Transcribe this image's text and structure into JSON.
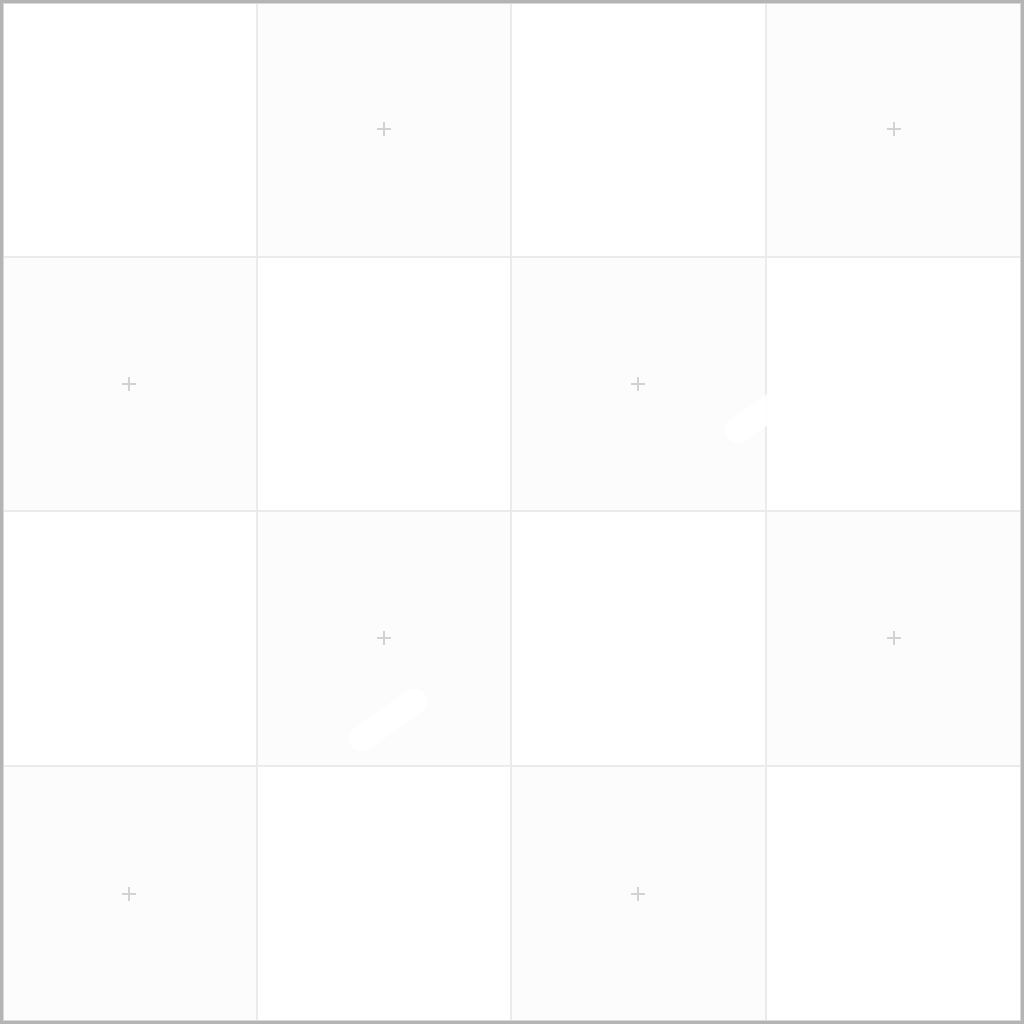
{
  "board": {
    "rows": 4,
    "columns": 4,
    "tiles": [
      {
        "state": "blank",
        "icon": "none"
      },
      {
        "state": "marked",
        "icon": "plus-icon"
      },
      {
        "state": "blank",
        "icon": "none"
      },
      {
        "state": "marked",
        "icon": "plus-icon"
      },
      {
        "state": "marked",
        "icon": "plus-icon"
      },
      {
        "state": "blank",
        "icon": "none"
      },
      {
        "state": "marked",
        "icon": "plus-icon"
      },
      {
        "state": "blank",
        "icon": "none"
      },
      {
        "state": "blank",
        "icon": "none"
      },
      {
        "state": "marked",
        "icon": "plus-icon"
      },
      {
        "state": "blank",
        "icon": "none"
      },
      {
        "state": "marked",
        "icon": "plus-icon"
      },
      {
        "state": "marked",
        "icon": "plus-icon"
      },
      {
        "state": "blank",
        "icon": "none"
      },
      {
        "state": "marked",
        "icon": "plus-icon"
      },
      {
        "state": "blank",
        "icon": "none"
      }
    ],
    "colors": {
      "frame_border": "#b4b4b4",
      "tile_divider": "#ebebeb",
      "tile_marked_fill": "#fcfcfc",
      "tile_blank_fill": "#ffffff",
      "plus_mark": "#d2d2d2"
    }
  }
}
